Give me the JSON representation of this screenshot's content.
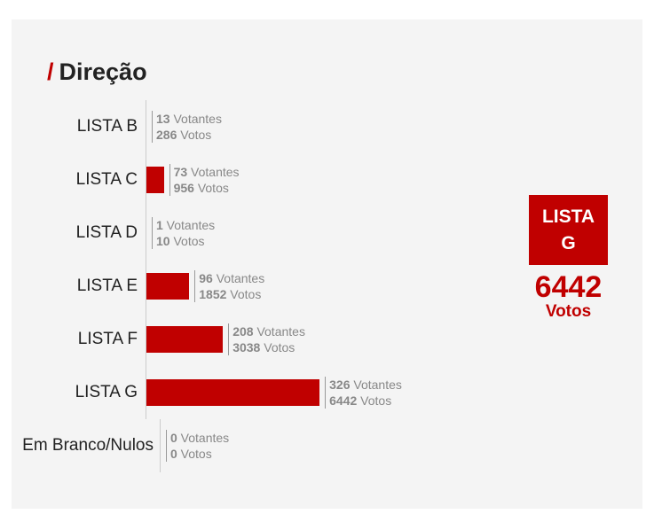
{
  "title": "Direção",
  "title_prefix": "/",
  "accent": "#c00000",
  "winner": {
    "label": "LISTA G",
    "votes": "6442",
    "votes_unit": "Votos"
  },
  "chart_data": {
    "type": "bar",
    "orientation": "horizontal",
    "title": "Direção",
    "categories": [
      "LISTA B",
      "LISTA C",
      "LISTA D",
      "LISTA E",
      "LISTA F",
      "LISTA G",
      "Em Branco/Nulos"
    ],
    "series": [
      {
        "name": "Votos",
        "values": [
          286,
          956,
          10,
          1852,
          3038,
          6442,
          0
        ]
      },
      {
        "name": "Votantes",
        "values": [
          13,
          73,
          1,
          96,
          208,
          326,
          0
        ]
      }
    ],
    "votantes_label": "Votantes",
    "votos_label": "Votos"
  }
}
